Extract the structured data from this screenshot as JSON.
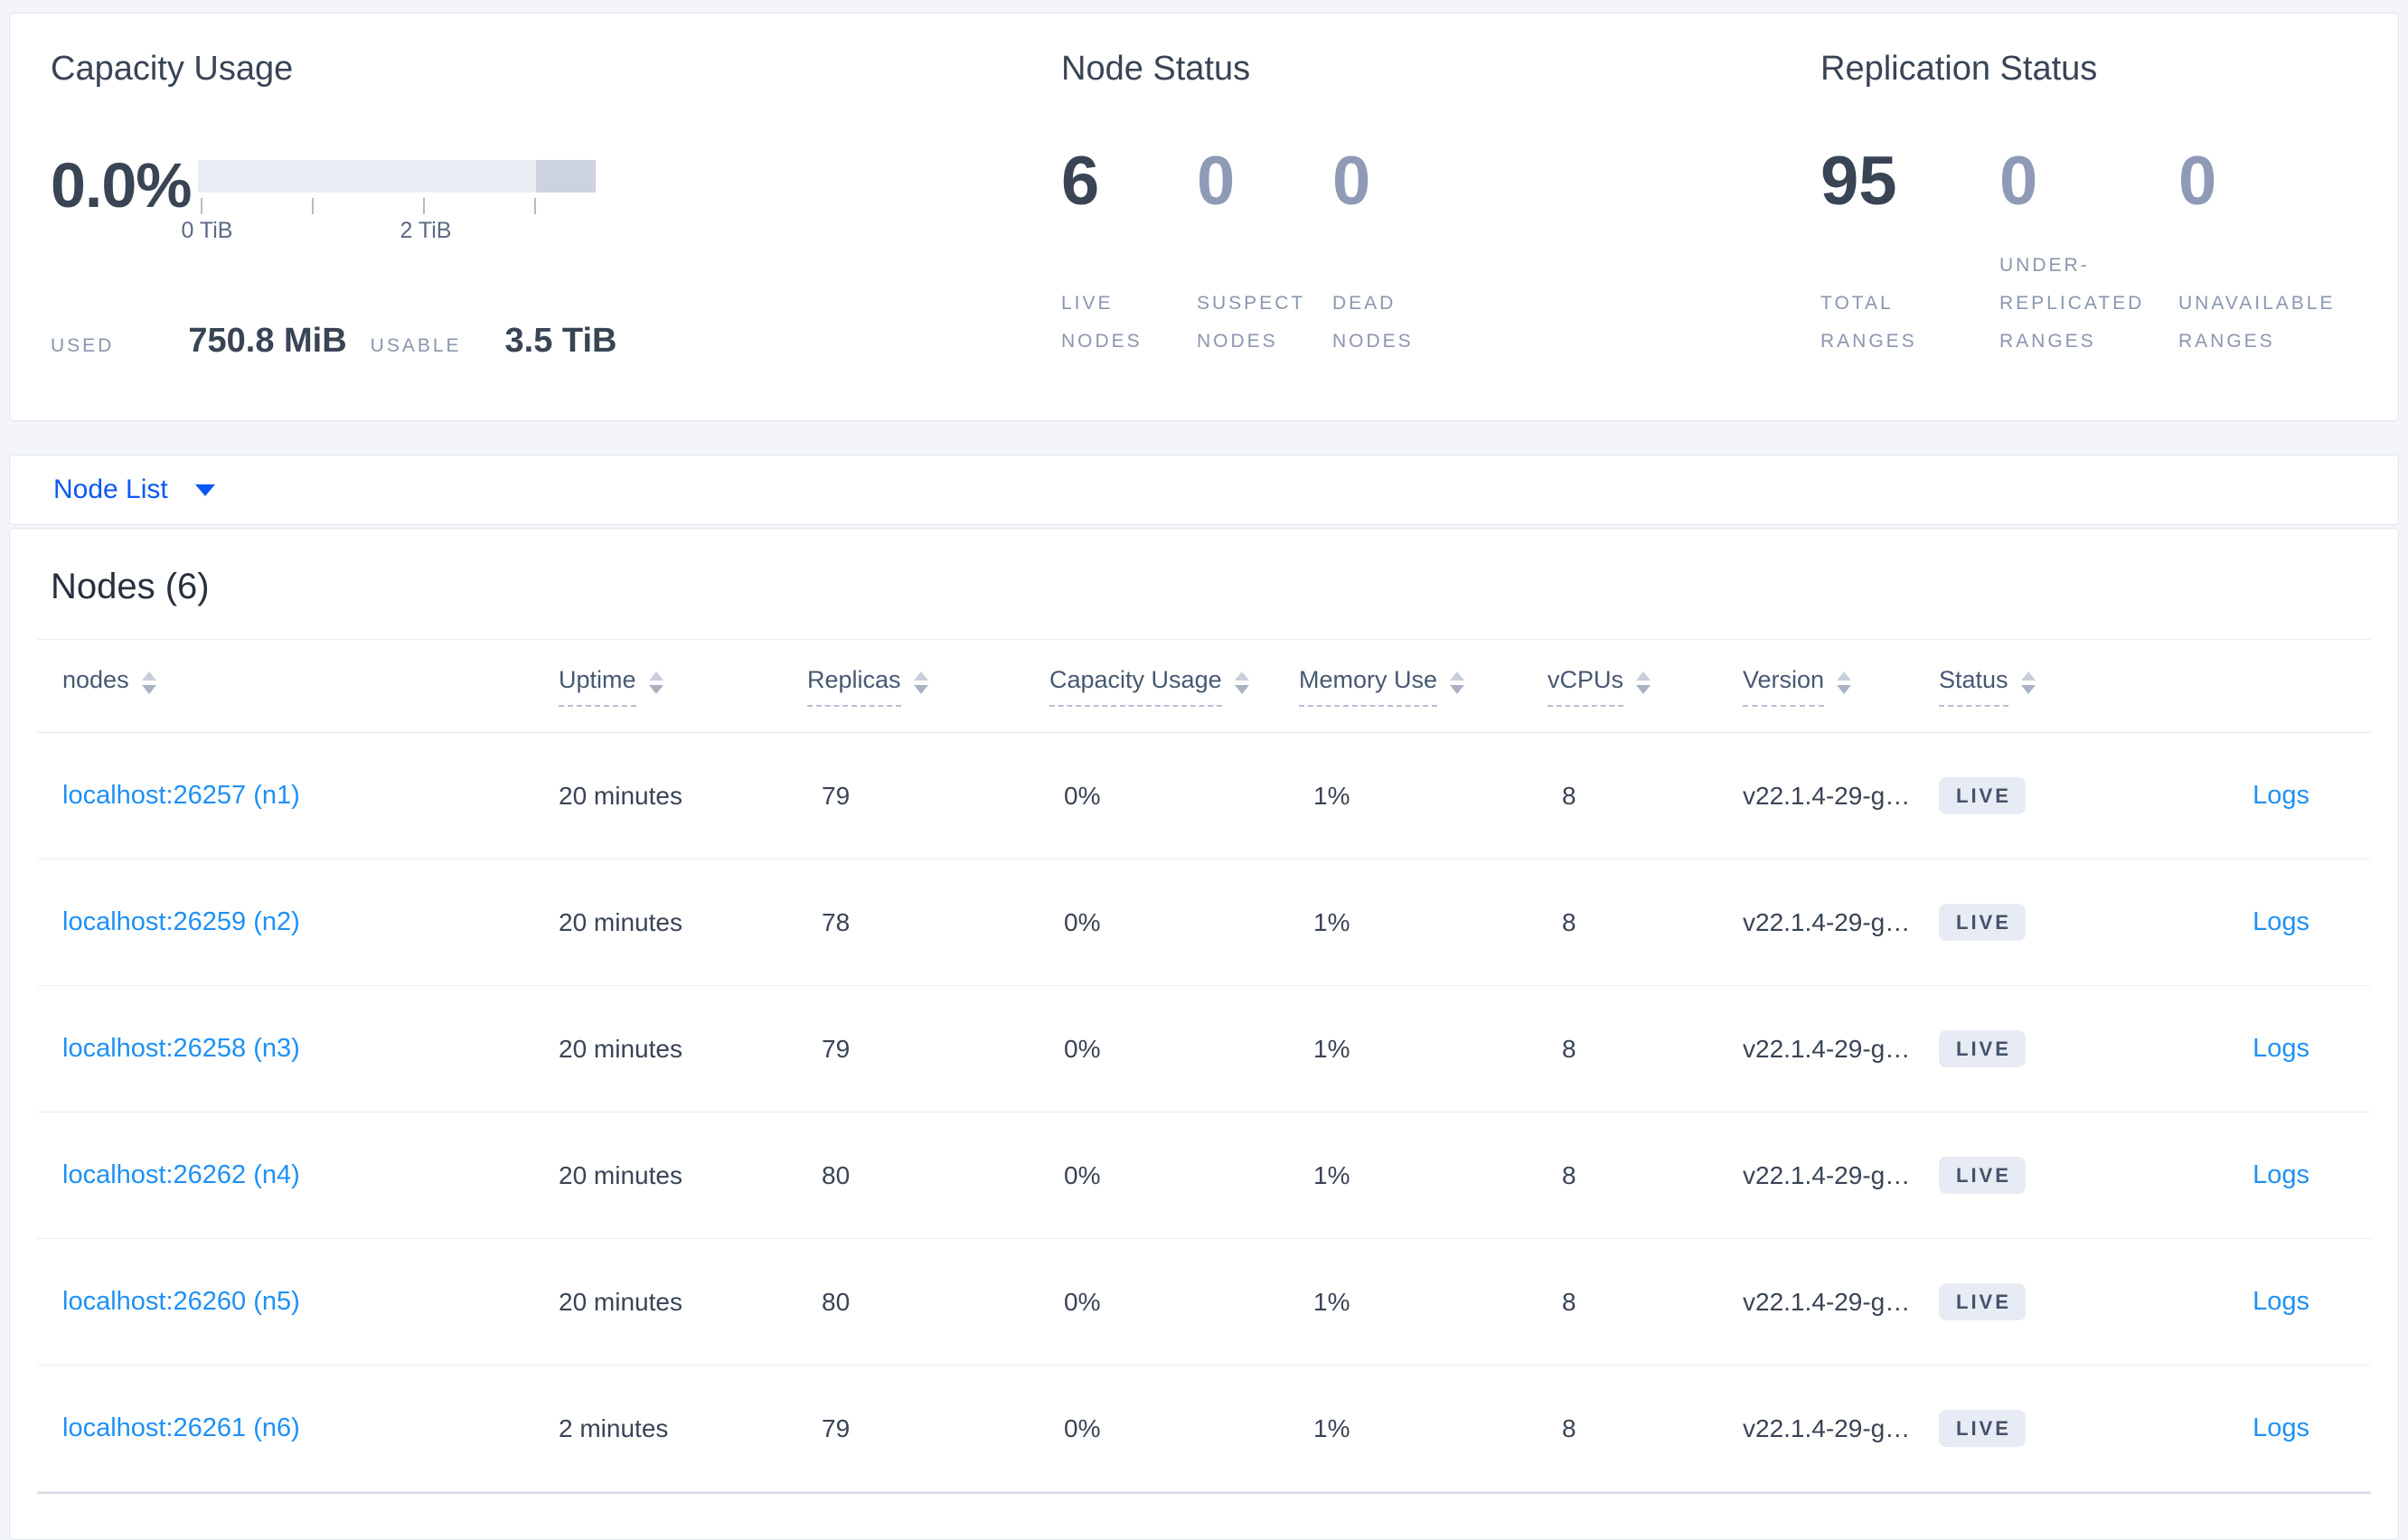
{
  "summary": {
    "capacity": {
      "title": "Capacity Usage",
      "percent": "0.0%",
      "tick_label_0": "0 TiB",
      "tick_label_2": "2 TiB",
      "used_label": "USED",
      "used_value": "750.8 MiB",
      "usable_label": "USABLE",
      "usable_value": "3.5 TiB"
    },
    "node_status": {
      "title": "Node Status",
      "stats": [
        {
          "value": "6",
          "label": "LIVE NODES"
        },
        {
          "value": "0",
          "label": "SUSPECT NODES"
        },
        {
          "value": "0",
          "label": "DEAD NODES"
        }
      ]
    },
    "replication": {
      "title": "Replication Status",
      "stats": [
        {
          "value": "95",
          "label": "TOTAL RANGES"
        },
        {
          "value": "0",
          "label": "UNDER-REPLICATED RANGES"
        },
        {
          "value": "0",
          "label": "UNAVAILABLE RANGES"
        }
      ]
    }
  },
  "node_list_bar": {
    "label": "Node List"
  },
  "nodes_table": {
    "heading": "Nodes (6)",
    "columns": [
      {
        "label": "nodes"
      },
      {
        "label": "Uptime"
      },
      {
        "label": "Replicas"
      },
      {
        "label": "Capacity Usage"
      },
      {
        "label": "Memory Use"
      },
      {
        "label": "vCPUs"
      },
      {
        "label": "Version"
      },
      {
        "label": "Status"
      }
    ],
    "rows": [
      {
        "node": "localhost:26257 (n1)",
        "uptime": "20 minutes",
        "replicas": "79",
        "capacity_usage": "0%",
        "memory_use": "1%",
        "vcpus": "8",
        "version": "v22.1.4-29-g…",
        "status": "LIVE",
        "logs_label": "Logs"
      },
      {
        "node": "localhost:26259 (n2)",
        "uptime": "20 minutes",
        "replicas": "78",
        "capacity_usage": "0%",
        "memory_use": "1%",
        "vcpus": "8",
        "version": "v22.1.4-29-g…",
        "status": "LIVE",
        "logs_label": "Logs"
      },
      {
        "node": "localhost:26258 (n3)",
        "uptime": "20 minutes",
        "replicas": "79",
        "capacity_usage": "0%",
        "memory_use": "1%",
        "vcpus": "8",
        "version": "v22.1.4-29-g…",
        "status": "LIVE",
        "logs_label": "Logs"
      },
      {
        "node": "localhost:26262 (n4)",
        "uptime": "20 minutes",
        "replicas": "80",
        "capacity_usage": "0%",
        "memory_use": "1%",
        "vcpus": "8",
        "version": "v22.1.4-29-g…",
        "status": "LIVE",
        "logs_label": "Logs"
      },
      {
        "node": "localhost:26260 (n5)",
        "uptime": "20 minutes",
        "replicas": "80",
        "capacity_usage": "0%",
        "memory_use": "1%",
        "vcpus": "8",
        "version": "v22.1.4-29-g…",
        "status": "LIVE",
        "logs_label": "Logs"
      },
      {
        "node": "localhost:26261 (n6)",
        "uptime": "2 minutes",
        "replicas": "79",
        "capacity_usage": "0%",
        "memory_use": "1%",
        "vcpus": "8",
        "version": "v22.1.4-29-g…",
        "status": "LIVE",
        "logs_label": "Logs"
      }
    ]
  },
  "colors": {
    "link_blue": "#1e90f5",
    "nav_blue": "#0b57f2",
    "dark_text": "#394455",
    "muted_stat_number": "#8e9ab6",
    "stat_label_gray": "#8a96ae",
    "badge_bg": "#e7ebf3",
    "bar_track": "#e9ecf2",
    "bar_segment": "#ccd2df",
    "page_bg": "#f3f5f9"
  }
}
